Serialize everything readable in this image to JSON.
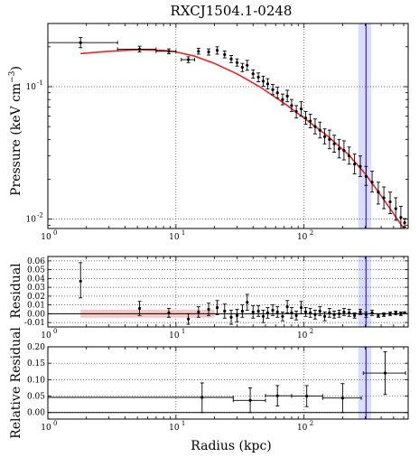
{
  "title": "RXCJ1504.1-0248",
  "colors": {
    "model": "#ee2222",
    "band_fill": "#d6d6ff",
    "band_line": "#3333ee",
    "residual_band": "#f7c6c6",
    "points": "#000000"
  },
  "chart_data": [
    {
      "type": "scatter",
      "name": "pressure_profile",
      "xlabel": "",
      "ylabel": "Pressure (keV cm⁻³)",
      "xscale": "log",
      "yscale": "log",
      "xlim": [
        1,
        650
      ],
      "ylim": [
        0.0085,
        0.3
      ],
      "x_ticks": [
        {
          "v": 1,
          "e": "0"
        },
        {
          "v": 10,
          "e": "1"
        },
        {
          "v": 100,
          "e": "2"
        }
      ],
      "y_ticks": [
        {
          "v": 0.01,
          "e": "-2"
        },
        {
          "v": 0.1,
          "e": "-1"
        }
      ],
      "grid": true,
      "vertical_band": {
        "x0": 265,
        "x1": 335,
        "line": 305
      },
      "model_curve": {
        "x": [
          1.8,
          3,
          5,
          8,
          10,
          14,
          20,
          30,
          45,
          70,
          100,
          150,
          220,
          300,
          400,
          500,
          600
        ],
        "y": [
          0.178,
          0.185,
          0.19,
          0.188,
          0.183,
          0.17,
          0.15,
          0.125,
          0.1,
          0.075,
          0.058,
          0.043,
          0.031,
          0.022,
          0.015,
          0.011,
          0.0085
        ]
      },
      "points": [
        {
          "x": 1.8,
          "y": 0.215,
          "xl": 1.0,
          "xh": 3.5,
          "yl": 0.197,
          "yh": 0.235
        },
        {
          "x": 5.2,
          "y": 0.192,
          "xl": 3.5,
          "xh": 7.0,
          "yl": 0.183,
          "yh": 0.202
        },
        {
          "x": 8.8,
          "y": 0.185,
          "xl": 7.0,
          "xh": 10.0,
          "yl": 0.177,
          "yh": 0.193
        },
        {
          "x": 12.5,
          "y": 0.16,
          "xl": 11.0,
          "xh": 14.0,
          "yl": 0.152,
          "yh": 0.168
        },
        {
          "x": 15,
          "y": 0.185,
          "yl": 0.176,
          "yh": 0.195
        },
        {
          "x": 18,
          "y": 0.183,
          "yl": 0.173,
          "yh": 0.193
        },
        {
          "x": 21,
          "y": 0.188,
          "yl": 0.176,
          "yh": 0.2
        },
        {
          "x": 24,
          "y": 0.175,
          "yl": 0.165,
          "yh": 0.186
        },
        {
          "x": 27,
          "y": 0.162,
          "yl": 0.152,
          "yh": 0.172
        },
        {
          "x": 30,
          "y": 0.152,
          "yl": 0.143,
          "yh": 0.162
        },
        {
          "x": 33,
          "y": 0.14,
          "yl": 0.13,
          "yh": 0.15
        },
        {
          "x": 36,
          "y": 0.145,
          "yl": 0.133,
          "yh": 0.158
        },
        {
          "x": 40,
          "y": 0.125,
          "yl": 0.116,
          "yh": 0.134
        },
        {
          "x": 44,
          "y": 0.118,
          "yl": 0.109,
          "yh": 0.127
        },
        {
          "x": 48,
          "y": 0.11,
          "yl": 0.101,
          "yh": 0.12
        },
        {
          "x": 52,
          "y": 0.105,
          "yl": 0.096,
          "yh": 0.115
        },
        {
          "x": 57,
          "y": 0.095,
          "yl": 0.087,
          "yh": 0.104
        },
        {
          "x": 62,
          "y": 0.09,
          "yl": 0.082,
          "yh": 0.099
        },
        {
          "x": 68,
          "y": 0.08,
          "yl": 0.073,
          "yh": 0.088
        },
        {
          "x": 74,
          "y": 0.085,
          "yl": 0.077,
          "yh": 0.094
        },
        {
          "x": 80,
          "y": 0.072,
          "yl": 0.065,
          "yh": 0.08
        },
        {
          "x": 87,
          "y": 0.065,
          "yl": 0.058,
          "yh": 0.072
        },
        {
          "x": 95,
          "y": 0.068,
          "yl": 0.06,
          "yh": 0.077
        },
        {
          "x": 103,
          "y": 0.058,
          "yl": 0.052,
          "yh": 0.065
        },
        {
          "x": 112,
          "y": 0.055,
          "yl": 0.049,
          "yh": 0.062
        },
        {
          "x": 122,
          "y": 0.05,
          "yl": 0.044,
          "yh": 0.057
        },
        {
          "x": 133,
          "y": 0.047,
          "yl": 0.041,
          "yh": 0.054
        },
        {
          "x": 145,
          "y": 0.042,
          "yl": 0.037,
          "yh": 0.048
        },
        {
          "x": 158,
          "y": 0.04,
          "yl": 0.034,
          "yh": 0.047
        },
        {
          "x": 172,
          "y": 0.037,
          "yl": 0.032,
          "yh": 0.043
        },
        {
          "x": 188,
          "y": 0.034,
          "yl": 0.029,
          "yh": 0.04
        },
        {
          "x": 205,
          "y": 0.033,
          "yl": 0.028,
          "yh": 0.039
        },
        {
          "x": 225,
          "y": 0.03,
          "yl": 0.026,
          "yh": 0.035
        },
        {
          "x": 248,
          "y": 0.026,
          "yl": 0.022,
          "yh": 0.031
        },
        {
          "x": 275,
          "y": 0.025,
          "yl": 0.021,
          "yh": 0.03
        },
        {
          "x": 305,
          "y": 0.021,
          "yl": 0.018,
          "yh": 0.025
        },
        {
          "x": 340,
          "y": 0.019,
          "yl": 0.016,
          "yh": 0.023
        },
        {
          "x": 380,
          "y": 0.016,
          "yl": 0.013,
          "yh": 0.019
        },
        {
          "x": 420,
          "y": 0.0145,
          "yl": 0.012,
          "yh": 0.0175
        },
        {
          "x": 470,
          "y": 0.0135,
          "yl": 0.011,
          "yh": 0.016
        },
        {
          "x": 520,
          "y": 0.012,
          "yl": 0.0098,
          "yh": 0.0145
        },
        {
          "x": 570,
          "y": 0.0103,
          "yl": 0.0085,
          "yh": 0.0125
        },
        {
          "x": 610,
          "y": 0.0094,
          "yl": 0.0087,
          "yh": 0.0101
        }
      ]
    },
    {
      "type": "scatter",
      "name": "residual",
      "xlabel": "",
      "ylabel": "Residual",
      "xscale": "log",
      "xlim": [
        1,
        650
      ],
      "ylim": [
        -0.015,
        0.065
      ],
      "x_ticks": [
        {
          "v": 1,
          "e": "0"
        },
        {
          "v": 10,
          "e": "1"
        },
        {
          "v": 100,
          "e": "2"
        }
      ],
      "y_ticks": [
        -0.01,
        0.0,
        0.01,
        0.02,
        0.03,
        0.04,
        0.05,
        0.06
      ],
      "y_tick_labels": [
        "-0.01",
        "0.00",
        "0.01",
        "0.02",
        "0.03",
        "0.04",
        "0.05",
        "0.06"
      ],
      "grid": true,
      "vertical_band": {
        "x0": 265,
        "x1": 335,
        "line": 305
      },
      "zero_band": {
        "x0": 1.8,
        "x1": 20,
        "y0": -0.0045,
        "y1": 0.0045
      },
      "points": [
        {
          "x": 1.8,
          "y": 0.037,
          "yl": 0.018,
          "yh": 0.058
        },
        {
          "x": 5.2,
          "y": 0.006,
          "yl": -0.002,
          "yh": 0.014
        },
        {
          "x": 8.8,
          "y": 0.001,
          "yl": -0.004,
          "yh": 0.006
        },
        {
          "x": 12.5,
          "y": -0.006,
          "yl": -0.012,
          "yh": 0.0
        },
        {
          "x": 15,
          "y": 0.002,
          "yl": -0.004,
          "yh": 0.008
        },
        {
          "x": 18,
          "y": 0.005,
          "yl": -0.002,
          "yh": 0.012
        },
        {
          "x": 21,
          "y": 0.007,
          "yl": -0.001,
          "yh": 0.015
        },
        {
          "x": 24,
          "y": 0.003,
          "yl": -0.005,
          "yh": 0.011
        },
        {
          "x": 27,
          "y": -0.004,
          "yl": -0.012,
          "yh": 0.004
        },
        {
          "x": 30,
          "y": -0.002,
          "yl": -0.009,
          "yh": 0.005
        },
        {
          "x": 33,
          "y": 0.003,
          "yl": -0.004,
          "yh": 0.01
        },
        {
          "x": 36,
          "y": 0.013,
          "yl": 0.004,
          "yh": 0.022
        },
        {
          "x": 40,
          "y": 0.002,
          "yl": -0.005,
          "yh": 0.009
        },
        {
          "x": 44,
          "y": 0.003,
          "yl": -0.003,
          "yh": 0.009
        },
        {
          "x": 48,
          "y": -0.003,
          "yl": -0.01,
          "yh": 0.004
        },
        {
          "x": 52,
          "y": 0.001,
          "yl": -0.005,
          "yh": 0.007
        },
        {
          "x": 57,
          "y": 0.004,
          "yl": -0.002,
          "yh": 0.01
        },
        {
          "x": 62,
          "y": 0.002,
          "yl": -0.004,
          "yh": 0.008
        },
        {
          "x": 68,
          "y": -0.003,
          "yl": -0.008,
          "yh": 0.002
        },
        {
          "x": 74,
          "y": 0.008,
          "yl": 0.001,
          "yh": 0.015
        },
        {
          "x": 80,
          "y": 0.001,
          "yl": -0.005,
          "yh": 0.007
        },
        {
          "x": 87,
          "y": -0.002,
          "yl": -0.007,
          "yh": 0.003
        },
        {
          "x": 95,
          "y": 0.007,
          "yl": 0.0,
          "yh": 0.014
        },
        {
          "x": 103,
          "y": 0.002,
          "yl": -0.003,
          "yh": 0.007
        },
        {
          "x": 112,
          "y": 0.001,
          "yl": -0.004,
          "yh": 0.006
        },
        {
          "x": 122,
          "y": -0.001,
          "yl": -0.006,
          "yh": 0.004
        },
        {
          "x": 133,
          "y": 0.003,
          "yl": -0.002,
          "yh": 0.008
        },
        {
          "x": 145,
          "y": -0.003,
          "yl": -0.008,
          "yh": 0.002
        },
        {
          "x": 158,
          "y": 0.001,
          "yl": -0.004,
          "yh": 0.006
        },
        {
          "x": 172,
          "y": -0.001,
          "yl": -0.005,
          "yh": 0.003
        },
        {
          "x": 188,
          "y": 0.0,
          "yl": -0.004,
          "yh": 0.004
        },
        {
          "x": 205,
          "y": 0.002,
          "yl": -0.002,
          "yh": 0.006
        },
        {
          "x": 225,
          "y": 0.001,
          "yl": -0.003,
          "yh": 0.005
        },
        {
          "x": 248,
          "y": -0.002,
          "yl": -0.005,
          "yh": 0.001
        },
        {
          "x": 275,
          "y": 0.002,
          "yl": -0.001,
          "yh": 0.005
        },
        {
          "x": 305,
          "y": -0.001,
          "yl": -0.004,
          "yh": 0.002
        },
        {
          "x": 340,
          "y": 0.001,
          "yl": -0.002,
          "yh": 0.004
        },
        {
          "x": 380,
          "y": -0.002,
          "yl": -0.004,
          "yh": 0.0
        },
        {
          "x": 420,
          "y": -0.001,
          "yl": -0.003,
          "yh": 0.001
        },
        {
          "x": 470,
          "y": 0.0,
          "yl": -0.002,
          "yh": 0.002
        },
        {
          "x": 520,
          "y": 0.001,
          "yl": -0.001,
          "yh": 0.003
        },
        {
          "x": 570,
          "y": 0.0,
          "yl": -0.002,
          "yh": 0.002
        },
        {
          "x": 610,
          "y": 0.001,
          "yl": 0.0,
          "yh": 0.002
        }
      ]
    },
    {
      "type": "scatter",
      "name": "relative_residual",
      "xlabel": "Radius (kpc)",
      "ylabel": "Relative Residual",
      "xscale": "log",
      "xlim": [
        1,
        650
      ],
      "ylim": [
        -0.02,
        0.2
      ],
      "x_ticks": [
        {
          "v": 1,
          "e": "0"
        },
        {
          "v": 10,
          "e": "1"
        },
        {
          "v": 100,
          "e": "2"
        }
      ],
      "y_ticks": [
        0.0,
        0.05,
        0.1,
        0.15,
        0.2
      ],
      "y_tick_labels": [
        "0.00",
        "0.05",
        "0.10",
        "0.15",
        "0.20"
      ],
      "grid": true,
      "vertical_band": {
        "x0": 265,
        "x1": 335,
        "line": 305
      },
      "points": [
        {
          "x": 16,
          "y": 0.046,
          "xl": 1.0,
          "xh": 28,
          "yl": 0.0,
          "yh": 0.09
        },
        {
          "x": 38,
          "y": 0.037,
          "xl": 28,
          "xh": 50,
          "yl": 0.0,
          "yh": 0.075
        },
        {
          "x": 62,
          "y": 0.051,
          "xl": 50,
          "xh": 80,
          "yl": 0.02,
          "yh": 0.082
        },
        {
          "x": 105,
          "y": 0.05,
          "xl": 80,
          "xh": 140,
          "yl": 0.018,
          "yh": 0.082
        },
        {
          "x": 200,
          "y": 0.044,
          "xl": 140,
          "xh": 280,
          "yl": 0.0,
          "yh": 0.088
        },
        {
          "x": 430,
          "y": 0.12,
          "xl": 290,
          "xh": 620,
          "yl": 0.055,
          "yh": 0.185
        }
      ]
    }
  ]
}
